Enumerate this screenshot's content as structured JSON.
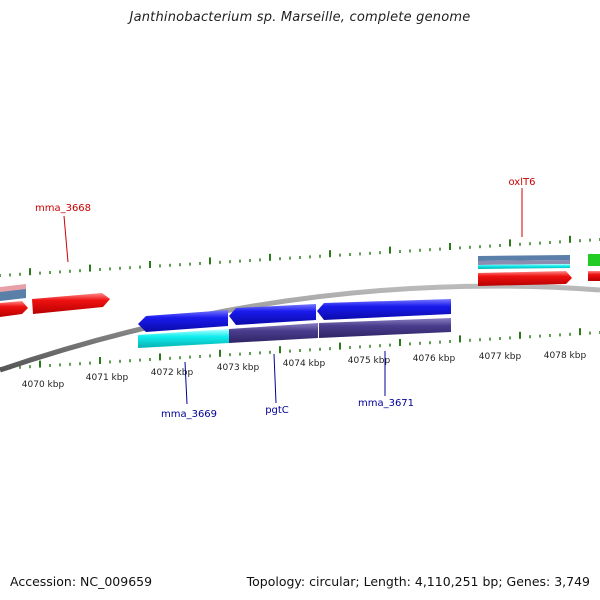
{
  "title": "Janthinobacterium sp. Marseille, complete genome",
  "footer": {
    "accession": "Accession: NC_009659",
    "stats": "Topology: circular; Length: 4,110,251 bp; Genes: 3,749"
  },
  "scale_labels": [
    "4070 kbp",
    "4071 kbp",
    "4072 kbp",
    "4073 kbp",
    "4074 kbp",
    "4075 kbp",
    "4076 kbp",
    "4077 kbp",
    "4078 kbp"
  ],
  "gene_labels": {
    "forward": [
      "mma_3668",
      "oxlT6"
    ],
    "reverse": [
      "mma_3669",
      "pgtC",
      "mma_3671"
    ]
  },
  "colors": {
    "forward_label": "#cc0000",
    "reverse_label": "#000099",
    "backbone": "#888888",
    "tick": "#2a7a1a",
    "cds_red": "#ee1111",
    "cds_blue": "#1a1aee",
    "cds_cyan": "#11eeee",
    "cds_purple": "#4a3c8c",
    "cds_steel": "#5a7fa8",
    "cds_pink": "#e8a0a8",
    "cds_green": "#22cc22"
  }
}
